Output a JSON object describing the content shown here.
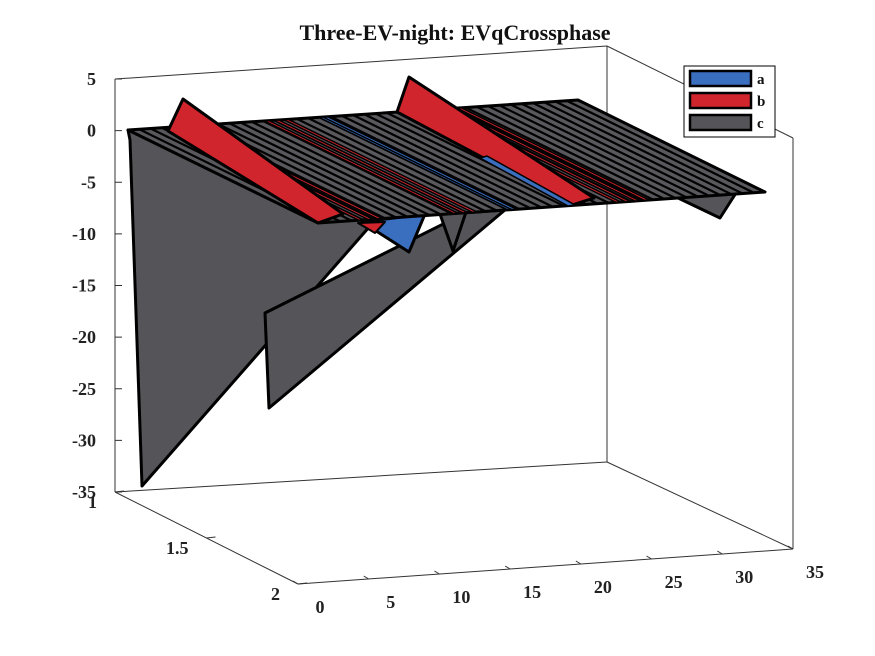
{
  "chart_data": {
    "type": "bar3",
    "title": "Three-EV-night: EVqCrossphase",
    "xlabel": "",
    "ylabel": "",
    "zlabel": "",
    "x_ticks": [
      "0",
      "5",
      "10",
      "15",
      "20",
      "25",
      "30",
      "35"
    ],
    "y_ticks": [
      "1",
      "1.5",
      "2"
    ],
    "z_ticks": [
      "5",
      "0",
      "-5",
      "-10",
      "-15",
      "-20",
      "-25",
      "-30",
      "-35"
    ],
    "xlim": [
      0,
      35
    ],
    "ylim": [
      1,
      2
    ],
    "zlim": [
      -35,
      5
    ],
    "grid": false,
    "legend_position": "top-right",
    "series": [
      {
        "name": "a",
        "color": "#3a6fc0",
        "stripes": [
          14,
          14.3
        ],
        "notch": {
          "x": [
            9,
            11
          ],
          "depth": -4
        }
      },
      {
        "name": "b",
        "color": "#d0252c",
        "stripes": [
          3,
          3.7,
          4.4,
          10,
          10.7,
          11.4,
          22,
          22.7,
          23.4,
          24.1
        ],
        "peaks": [
          {
            "x": [
              2,
              3
            ],
            "z": 2.5
          },
          {
            "x": [
              11,
              12
            ],
            "z": 4
          }
        ]
      },
      {
        "name": "c",
        "color": "#555459",
        "dips": [
          {
            "x": [
              1,
              2
            ],
            "z": -34
          },
          {
            "x": [
              7,
              8
            ],
            "z": -26
          },
          {
            "x": [
              10,
              12
            ],
            "z": -3.5
          },
          {
            "x": [
              28,
              29
            ],
            "z": -3
          }
        ]
      }
    ]
  }
}
